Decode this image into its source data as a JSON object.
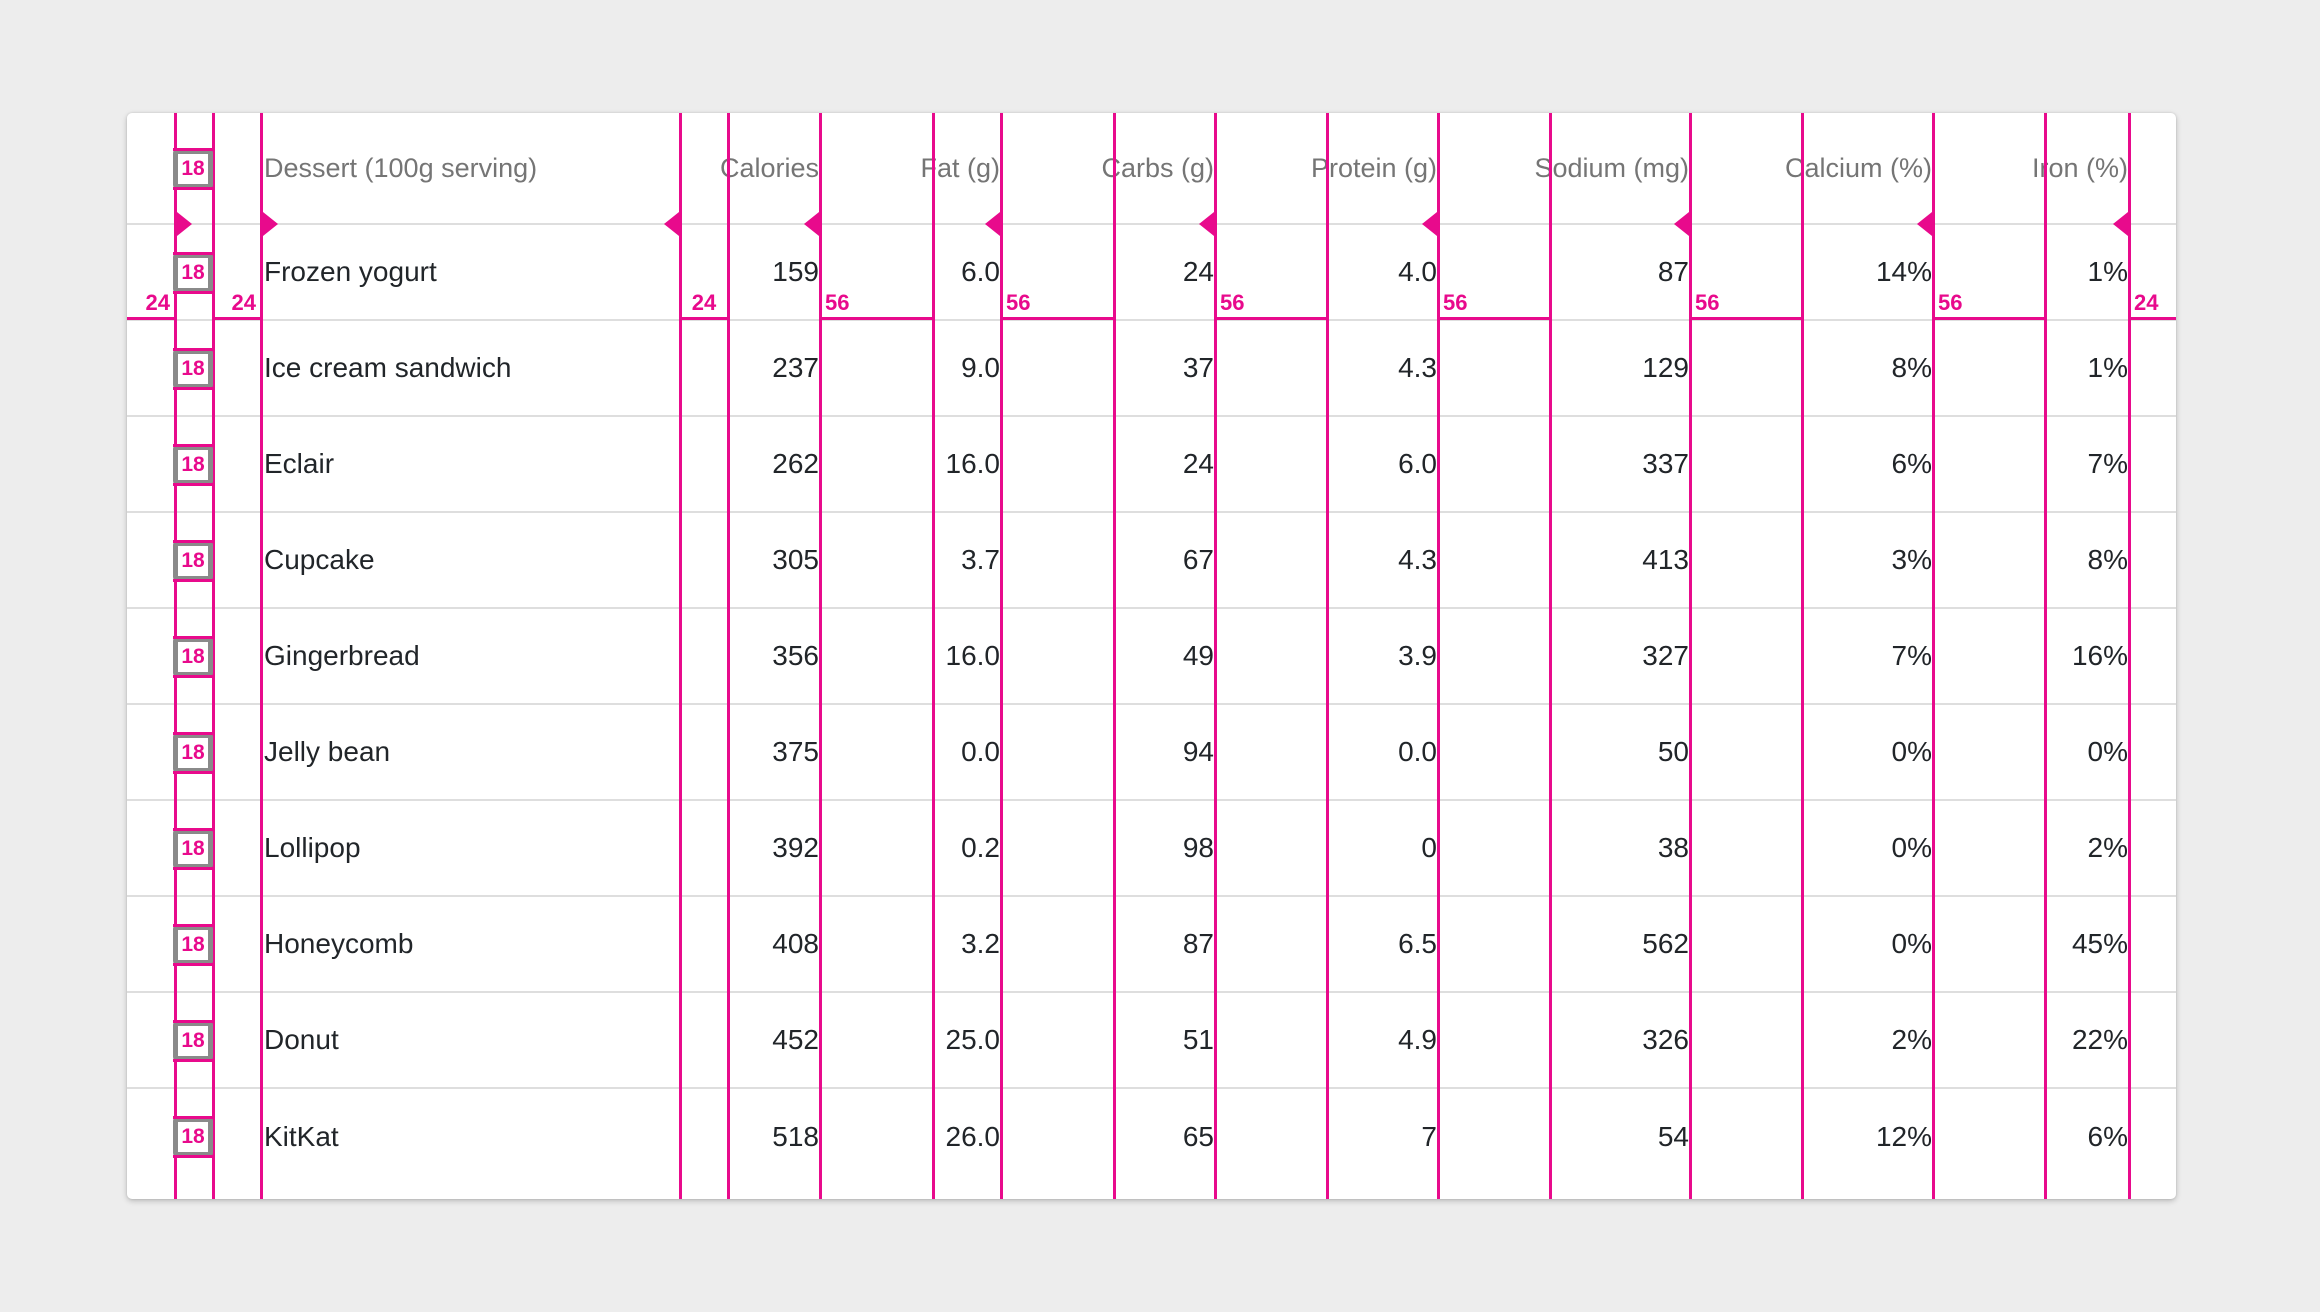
{
  "table": {
    "columns": [
      {
        "key": "dessert",
        "label": "Dessert (100g serving)",
        "align": "left"
      },
      {
        "key": "calories",
        "label": "Calories",
        "align": "right"
      },
      {
        "key": "fat",
        "label": "Fat (g)",
        "align": "right"
      },
      {
        "key": "carbs",
        "label": "Carbs (g)",
        "align": "right"
      },
      {
        "key": "protein",
        "label": "Protein (g)",
        "align": "right"
      },
      {
        "key": "sodium",
        "label": "Sodium (mg)",
        "align": "right"
      },
      {
        "key": "calcium",
        "label": "Calcium (%)",
        "align": "right"
      },
      {
        "key": "iron",
        "label": "Iron (%)",
        "align": "right"
      }
    ],
    "rows": [
      {
        "dessert": "Frozen yogurt",
        "calories": "159",
        "fat": "6.0",
        "carbs": "24",
        "protein": "4.0",
        "sodium": "87",
        "calcium": "14%",
        "iron": "1%"
      },
      {
        "dessert": "Ice cream sandwich",
        "calories": "237",
        "fat": "9.0",
        "carbs": "37",
        "protein": "4.3",
        "sodium": "129",
        "calcium": "8%",
        "iron": "1%"
      },
      {
        "dessert": "Eclair",
        "calories": "262",
        "fat": "16.0",
        "carbs": "24",
        "protein": "6.0",
        "sodium": "337",
        "calcium": "6%",
        "iron": "7%"
      },
      {
        "dessert": "Cupcake",
        "calories": "305",
        "fat": "3.7",
        "carbs": "67",
        "protein": "4.3",
        "sodium": "413",
        "calcium": "3%",
        "iron": "8%"
      },
      {
        "dessert": "Gingerbread",
        "calories": "356",
        "fat": "16.0",
        "carbs": "49",
        "protein": "3.9",
        "sodium": "327",
        "calcium": "7%",
        "iron": "16%"
      },
      {
        "dessert": "Jelly bean",
        "calories": "375",
        "fat": "0.0",
        "carbs": "94",
        "protein": "0.0",
        "sodium": "50",
        "calcium": "0%",
        "iron": "0%"
      },
      {
        "dessert": "Lollipop",
        "calories": "392",
        "fat": "0.2",
        "carbs": "98",
        "protein": "0",
        "sodium": "38",
        "calcium": "0%",
        "iron": "2%"
      },
      {
        "dessert": "Honeycomb",
        "calories": "408",
        "fat": "3.2",
        "carbs": "87",
        "protein": "6.5",
        "sodium": "562",
        "calcium": "0%",
        "iron": "45%"
      },
      {
        "dessert": "Donut",
        "calories": "452",
        "fat": "25.0",
        "carbs": "51",
        "protein": "4.9",
        "sodium": "326",
        "calcium": "2%",
        "iron": "22%"
      },
      {
        "dessert": "KitKat",
        "calories": "518",
        "fat": "26.0",
        "carbs": "65",
        "protein": "7",
        "sodium": "54",
        "calcium": "12%",
        "iron": "6%"
      }
    ]
  },
  "annotations": {
    "checkbox_size_label": "18",
    "gap_labels": [
      "24",
      "24",
      "24",
      "56",
      "56",
      "56",
      "56",
      "56",
      "56",
      "24"
    ],
    "colors": {
      "redline_pink": "#E80A8C",
      "divider_gray": "#DEDEDE",
      "header_text": "#757575",
      "body_text": "#212529",
      "annotation_box_border": "#8A8A8A",
      "card_background": "#FFFFFF",
      "page_background": "#EDEDED"
    }
  }
}
